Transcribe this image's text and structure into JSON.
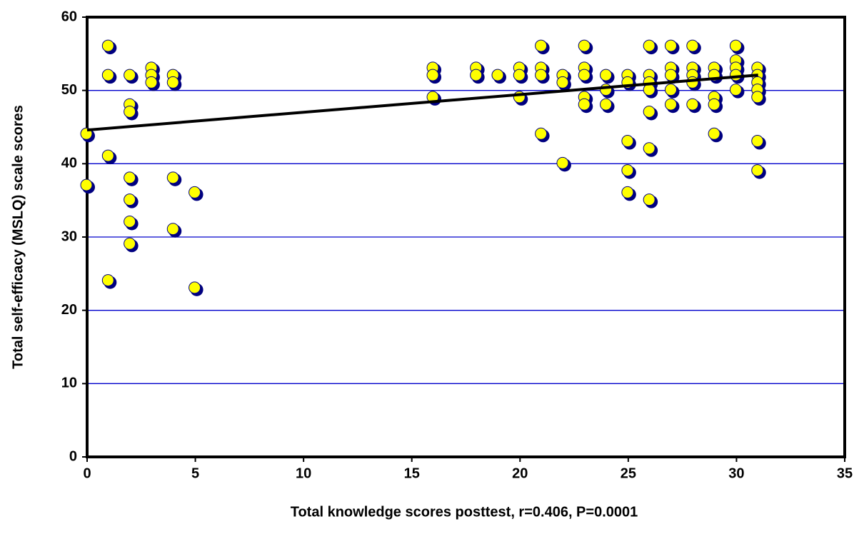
{
  "chart_data": {
    "type": "scatter",
    "x_label": "Total knowledge scores posttest, r=0.406, P=0.0001",
    "y_label": "Total self-efficacy (MSLQ) scale scores",
    "xlim": [
      0,
      35
    ],
    "xticks": [
      0,
      5,
      10,
      15,
      20,
      25,
      30,
      35
    ],
    "ylim": [
      0,
      60
    ],
    "yticks": [
      0,
      10,
      20,
      30,
      40,
      50,
      60
    ],
    "grid": true,
    "grid_color": "#0000cc",
    "series": [
      {
        "color": "#ffff00",
        "edge_color": "#000080",
        "x": [
          0,
          0,
          1,
          1,
          1,
          1,
          2,
          2,
          2,
          2,
          2,
          2,
          2,
          3,
          3,
          3,
          4,
          4,
          4,
          4,
          5,
          5,
          16,
          16,
          16,
          18,
          18,
          19,
          20,
          20,
          20,
          21,
          21,
          21,
          21,
          22,
          22,
          22,
          23,
          23,
          23,
          23,
          23,
          24,
          24,
          24,
          25,
          25,
          25,
          25,
          25,
          26,
          26,
          26,
          26,
          26,
          26,
          26,
          27,
          27,
          27,
          27,
          27,
          28,
          28,
          28,
          28,
          28,
          29,
          29,
          29,
          29,
          29,
          30,
          30,
          30,
          30,
          30,
          31,
          31,
          31,
          31,
          31,
          31,
          31
        ],
        "y": [
          44,
          37,
          56,
          52,
          41,
          24,
          52,
          48,
          47,
          38,
          35,
          32,
          29,
          53,
          52,
          51,
          52,
          51,
          38,
          31,
          36,
          23,
          53,
          52,
          49,
          53,
          52,
          52,
          53,
          52,
          49,
          56,
          53,
          52,
          44,
          52,
          51,
          40,
          56,
          53,
          52,
          49,
          48,
          52,
          50,
          48,
          52,
          51,
          43,
          39,
          36,
          56,
          52,
          51,
          50,
          47,
          42,
          35,
          56,
          53,
          52,
          50,
          48,
          56,
          53,
          52,
          51,
          48,
          53,
          52,
          49,
          48,
          44,
          56,
          54,
          53,
          52,
          50,
          53,
          52,
          51,
          50,
          49,
          43,
          39
        ]
      }
    ],
    "trend_line": {
      "color": "#000000",
      "x": [
        0,
        31
      ],
      "y": [
        44.6,
        52.1
      ]
    }
  }
}
